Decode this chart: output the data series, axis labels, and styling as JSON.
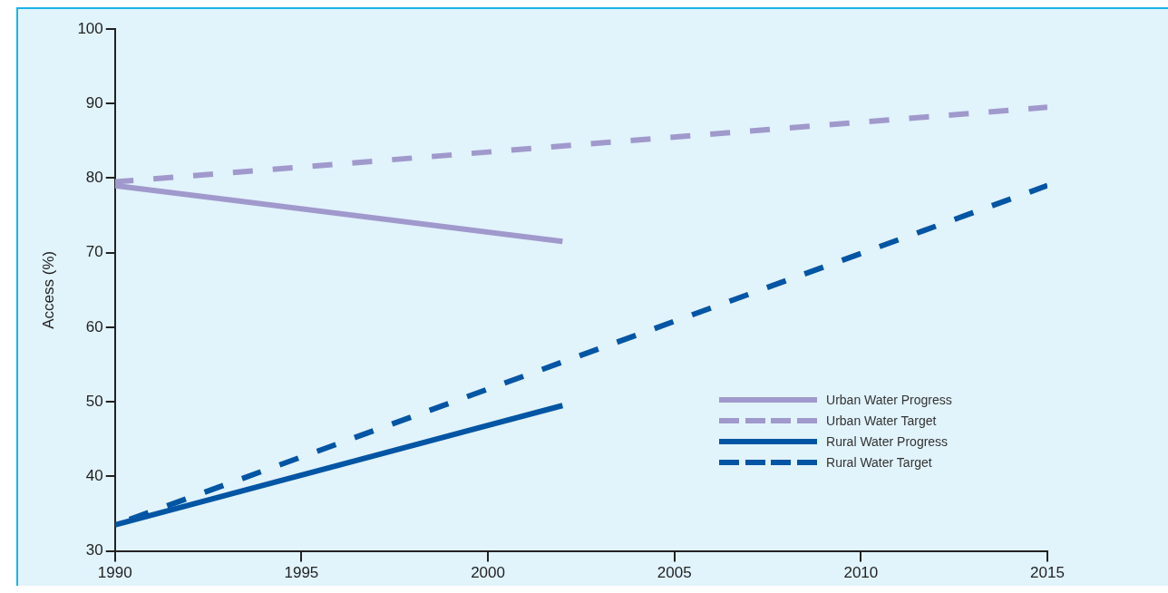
{
  "chart_data": {
    "type": "line",
    "ylabel": "Access (%)",
    "xlim": [
      1990,
      2015
    ],
    "xticks": [
      1990,
      1995,
      2000,
      2005,
      2010,
      2015
    ],
    "ylim": [
      30,
      100
    ],
    "yticks": [
      30,
      40,
      50,
      60,
      70,
      80,
      90,
      100
    ],
    "grid": false,
    "legend": "bottom right",
    "marker": "none",
    "series": [
      {
        "name": "Urban Water Progress",
        "color": "#a099cc",
        "line_style": "solid",
        "x": [
          1990,
          2002
        ],
        "values": [
          79,
          71.5
        ]
      },
      {
        "name": "Urban Water Target",
        "color": "#a099cc",
        "line_style": "dashed",
        "x": [
          1990,
          2015
        ],
        "values": [
          79.5,
          89.5
        ]
      },
      {
        "name": "Rural Water Progress",
        "color": "#0055a4",
        "line_style": "solid",
        "x": [
          1990,
          2002
        ],
        "values": [
          33.5,
          49.5
        ]
      },
      {
        "name": "Rural Water Target",
        "color": "#0055a4",
        "line_style": "dashed",
        "x": [
          1990,
          2015
        ],
        "values": [
          33.5,
          79
        ]
      }
    ]
  }
}
